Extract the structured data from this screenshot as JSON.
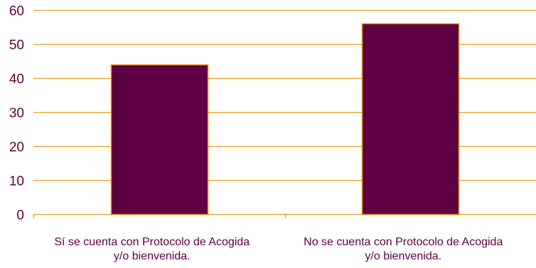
{
  "chart_data": {
    "type": "bar",
    "categories": [
      [
        "Sí se cuenta con Protocolo de Acogida",
        "y/o bienvenida."
      ],
      [
        "No se cuenta con Protocolo de Acogida",
        "y/o bienvenida."
      ]
    ],
    "values": [
      44,
      56
    ],
    "ylim": [
      0,
      60
    ],
    "yticks": [
      0,
      10,
      20,
      30,
      40,
      50,
      60
    ],
    "grid": true,
    "bar_color": "#5e0042",
    "bar_edge_color": "#e8900c",
    "grid_color": "#e8900c",
    "text_color": "#5a0042"
  }
}
